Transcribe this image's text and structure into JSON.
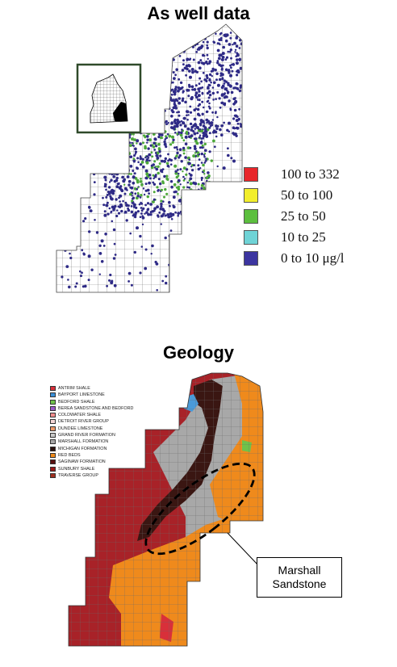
{
  "panel_top": {
    "title": "As well data"
  },
  "arsenic_legend": [
    {
      "label": "100 to 332",
      "color": "#e8262a"
    },
    {
      "label": "50 to 100",
      "color": "#f2ee2c"
    },
    {
      "label": "25 to 50",
      "color": "#5cbf3e"
    },
    {
      "label": "10 to 25",
      "color": "#6fd3d6"
    },
    {
      "label": "0 to 10 μg/l",
      "color": "#3c35a0"
    }
  ],
  "panel_bottom": {
    "title": "Geology"
  },
  "geology_legend": [
    {
      "label": "ANTRIM SHALE",
      "color": "#d8303a"
    },
    {
      "label": "BAYPORT LIMESTONE",
      "color": "#3a8fd8"
    },
    {
      "label": "BEDFORD SHALE",
      "color": "#6fc24a"
    },
    {
      "label": "BEREA SANDSTONE AND BEDFORD",
      "color": "#9a58c8"
    },
    {
      "label": "COLDWATER SHALE",
      "color": "#f08c8c"
    },
    {
      "label": "DETROIT RIVER GROUP",
      "color": "#f4d6d6"
    },
    {
      "label": "DUNDEE LIMESTONE",
      "color": "#ee9a6a"
    },
    {
      "label": "GRAND RIVER FORMATION",
      "color": "#c8c8c8"
    },
    {
      "label": "MARSHALL FORMATION",
      "color": "#a8a8a8"
    },
    {
      "label": "MICHIGAN FORMATION",
      "color": "#2a1210"
    },
    {
      "label": "RED BEDS",
      "color": "#ef8a1c"
    },
    {
      "label": "SAGINAW FORMATION",
      "color": "#5a1010"
    },
    {
      "label": "SUNBURY SHALE",
      "color": "#9a1818"
    },
    {
      "label": "TRAVERSE GROUP",
      "color": "#a03020"
    }
  ],
  "callout": {
    "line1": "Marshall",
    "line2": "Sandstone"
  },
  "colors": {
    "well_dot": "#2e2a86",
    "well_dot_green": "#4da83a",
    "grid_line": "#888888",
    "red_geo": "#a82228",
    "orange_geo": "#ef8a1c",
    "gray_geo": "#a8a8a8",
    "dark_geo": "#3a1612"
  }
}
